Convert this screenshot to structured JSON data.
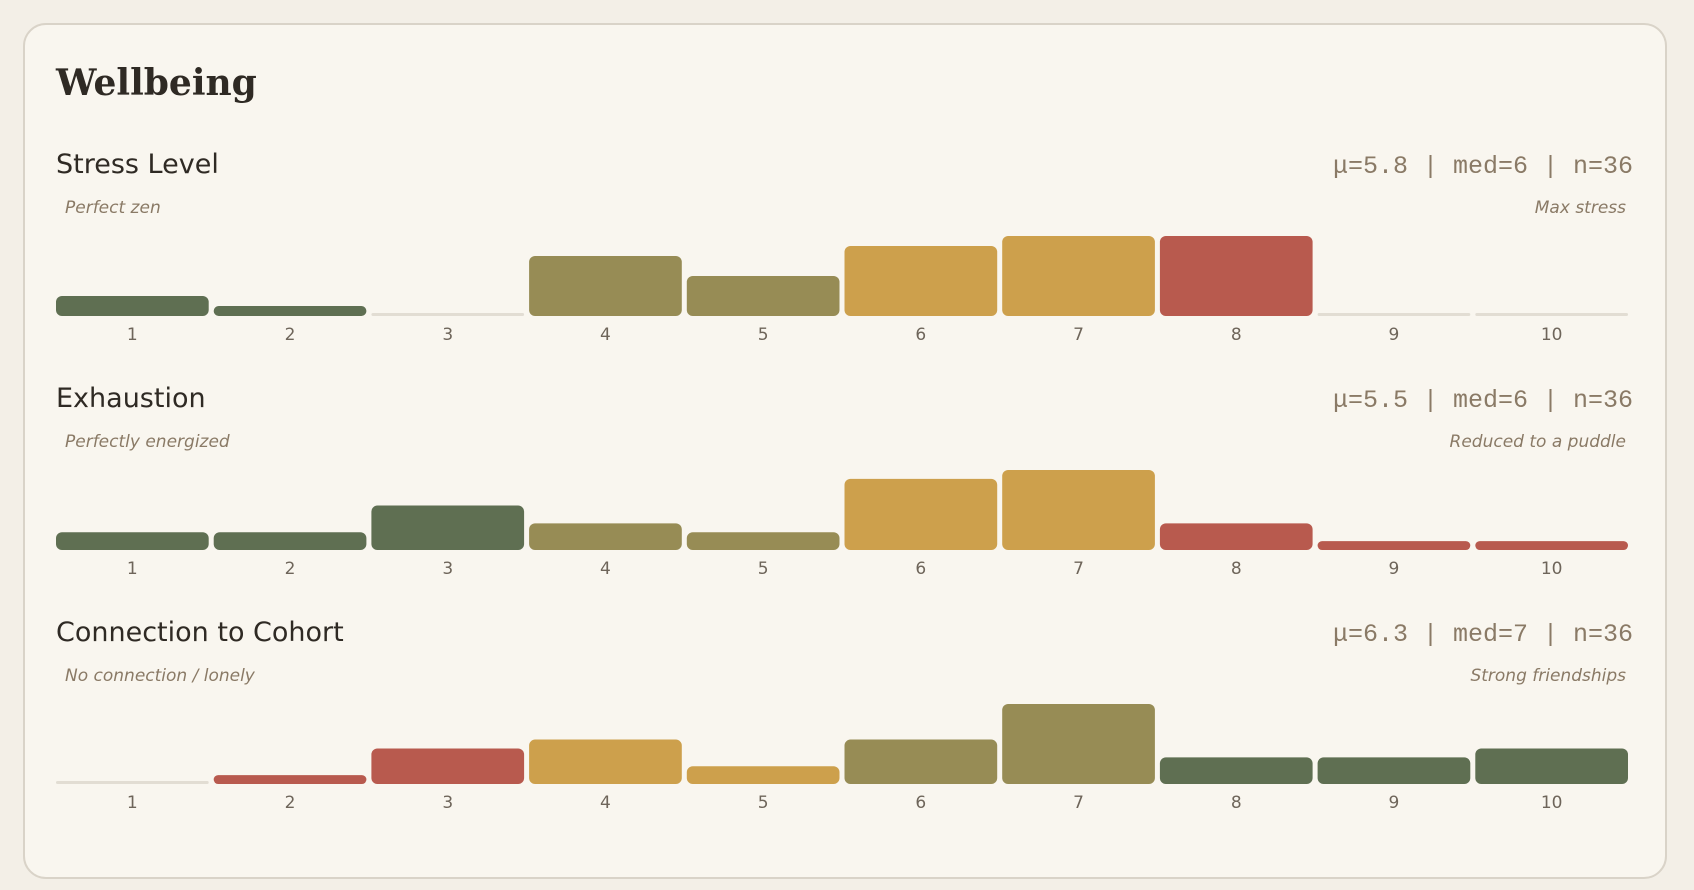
{
  "title": "Wellbeing",
  "chart_data": [
    {
      "type": "bar",
      "title": "Stress Level",
      "stats": "μ=5.8 | med=6 | n=36",
      "low_label": "Perfect zen",
      "high_label": "Max stress",
      "categories": [
        "1",
        "2",
        "3",
        "4",
        "5",
        "6",
        "7",
        "8",
        "9",
        "10"
      ],
      "values": [
        2,
        1,
        0,
        6,
        4,
        7,
        8,
        8,
        0,
        0
      ],
      "colors": [
        "#5f6f52",
        "#5f6f52",
        "#5f6f52",
        "#978c55",
        "#978c55",
        "#cda04c",
        "#cda04c",
        "#b85a4e",
        "#b85a4e",
        "#b85a4e"
      ]
    },
    {
      "type": "bar",
      "title": "Exhaustion",
      "stats": "μ=5.5 | med=6 | n=36",
      "low_label": "Perfectly energized",
      "high_label": "Reduced to a puddle",
      "categories": [
        "1",
        "2",
        "3",
        "4",
        "5",
        "6",
        "7",
        "8",
        "9",
        "10"
      ],
      "values": [
        2,
        2,
        5,
        3,
        2,
        8,
        9,
        3,
        1,
        1
      ],
      "colors": [
        "#5f6f52",
        "#5f6f52",
        "#5f6f52",
        "#978c55",
        "#978c55",
        "#cda04c",
        "#cda04c",
        "#b85a4e",
        "#b85a4e",
        "#b85a4e"
      ]
    },
    {
      "type": "bar",
      "title": "Connection to Cohort",
      "stats": "μ=6.3 | med=7 | n=36",
      "low_label": "No connection / lonely",
      "high_label": "Strong friendships",
      "categories": [
        "1",
        "2",
        "3",
        "4",
        "5",
        "6",
        "7",
        "8",
        "9",
        "10"
      ],
      "values": [
        0,
        1,
        4,
        5,
        2,
        5,
        9,
        3,
        3,
        4
      ],
      "colors": [
        "#b85a4e",
        "#b85a4e",
        "#b85a4e",
        "#cda04c",
        "#cda04c",
        "#978c55",
        "#978c55",
        "#5f6f52",
        "#5f6f52",
        "#5f6f52"
      ]
    }
  ]
}
